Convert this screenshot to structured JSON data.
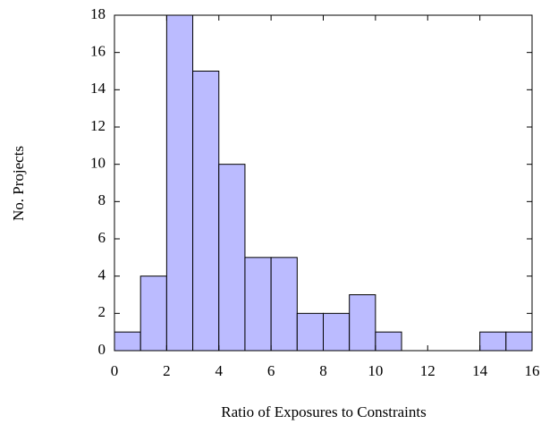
{
  "chart_data": {
    "type": "histogram",
    "xlabel": "Ratio of Exposures to Constraints",
    "ylabel": "No. Projects",
    "bins": [
      0,
      1,
      2,
      3,
      4,
      5,
      6,
      7,
      8,
      9,
      10,
      11,
      12,
      13,
      14,
      15,
      16
    ],
    "values": [
      1,
      4,
      18,
      15,
      10,
      5,
      5,
      2,
      2,
      3,
      1,
      0,
      0,
      0,
      1,
      1
    ],
    "color": "#bbbbff",
    "xlim": [
      0,
      16
    ],
    "xticks": [
      0,
      2,
      4,
      6,
      8,
      10,
      12,
      14,
      16
    ],
    "ylim": [
      0,
      18
    ],
    "yticks": [
      0,
      2,
      4,
      6,
      8,
      10,
      12,
      14,
      16,
      18
    ]
  }
}
